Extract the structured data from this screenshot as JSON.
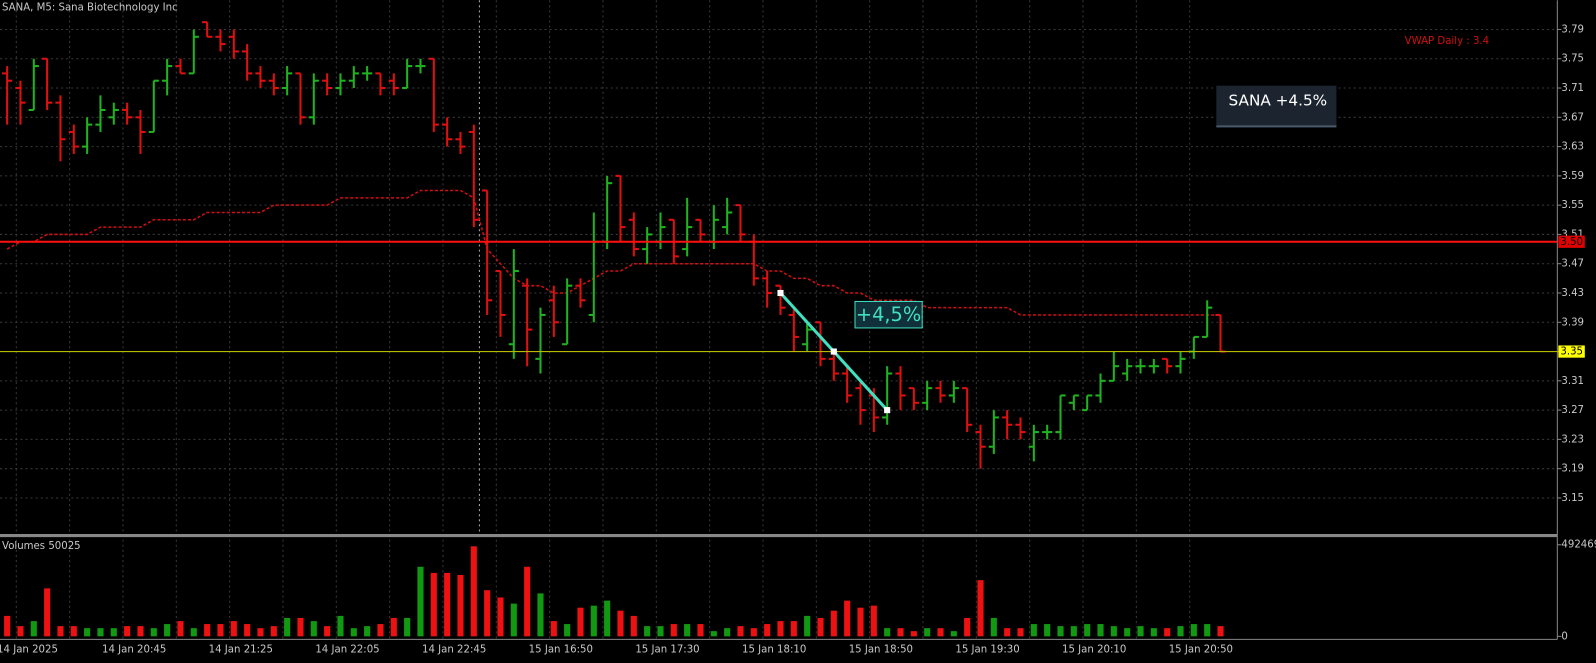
{
  "chart_data": {
    "type": "ohlc",
    "title": "SANA, M5:  Sana Biotechnology Inc",
    "categories": [
      "14 Jan 2025",
      null,
      null,
      null,
      null,
      null,
      null,
      null,
      "14 Jan 20:45",
      null,
      null,
      null,
      null,
      null,
      null,
      null,
      "14 Jan 21:25",
      null,
      null,
      null,
      null,
      null,
      null,
      null,
      "14 Jan 22:05",
      null,
      null,
      null,
      null,
      null,
      null,
      null,
      "14 Jan 22:45",
      null,
      null,
      null,
      null,
      null,
      null,
      null,
      "15 Jan 16:50",
      null,
      null,
      null,
      null,
      null,
      null,
      null,
      "15 Jan 17:30",
      null,
      null,
      null,
      null,
      null,
      null,
      null,
      "15 Jan 18:10",
      null,
      null,
      null,
      null,
      null,
      null,
      null,
      "15 Jan 18:50",
      null,
      null,
      null,
      null,
      null,
      null,
      null,
      "15 Jan 19:30",
      null,
      null,
      null,
      null,
      null,
      null,
      null,
      "15 Jan 20:10",
      null,
      null,
      null,
      null,
      null,
      null,
      null,
      "15 Jan 20:50",
      null,
      null,
      null
    ],
    "ohlc": [
      [
        3.73,
        3.74,
        3.66,
        3.72
      ],
      [
        3.71,
        3.72,
        3.66,
        3.69
      ],
      [
        3.68,
        3.75,
        3.68,
        3.74
      ],
      [
        3.75,
        3.75,
        3.68,
        3.69
      ],
      [
        3.69,
        3.7,
        3.61,
        3.64
      ],
      [
        3.65,
        3.66,
        3.62,
        3.63
      ],
      [
        3.63,
        3.67,
        3.62,
        3.66
      ],
      [
        3.66,
        3.7,
        3.65,
        3.68
      ],
      [
        3.67,
        3.69,
        3.66,
        3.68
      ],
      [
        3.68,
        3.69,
        3.66,
        3.67
      ],
      [
        3.67,
        3.68,
        3.62,
        3.65
      ],
      [
        3.65,
        3.72,
        3.65,
        3.72
      ],
      [
        3.72,
        3.75,
        3.7,
        3.74
      ],
      [
        3.74,
        3.75,
        3.73,
        3.73
      ],
      [
        3.73,
        3.79,
        3.73,
        3.78
      ],
      [
        3.8,
        3.8,
        3.78,
        3.78
      ],
      [
        3.78,
        3.79,
        3.76,
        3.77
      ],
      [
        3.78,
        3.79,
        3.75,
        3.76
      ],
      [
        3.76,
        3.77,
        3.72,
        3.73
      ],
      [
        3.73,
        3.74,
        3.71,
        3.72
      ],
      [
        3.72,
        3.73,
        3.7,
        3.71
      ],
      [
        3.71,
        3.74,
        3.7,
        3.73
      ],
      [
        3.73,
        3.73,
        3.66,
        3.67
      ],
      [
        3.67,
        3.73,
        3.66,
        3.72
      ],
      [
        3.72,
        3.73,
        3.7,
        3.71
      ],
      [
        3.71,
        3.73,
        3.7,
        3.72
      ],
      [
        3.72,
        3.74,
        3.71,
        3.73
      ],
      [
        3.73,
        3.74,
        3.72,
        3.73
      ],
      [
        3.73,
        3.73,
        3.7,
        3.71
      ],
      [
        3.72,
        3.73,
        3.7,
        3.71
      ],
      [
        3.71,
        3.75,
        3.71,
        3.74
      ],
      [
        3.74,
        3.75,
        3.73,
        3.74
      ],
      [
        3.75,
        3.75,
        3.65,
        3.66
      ],
      [
        3.66,
        3.67,
        3.63,
        3.64
      ],
      [
        3.64,
        3.65,
        3.62,
        3.63
      ],
      [
        3.65,
        3.66,
        3.52,
        3.53
      ],
      [
        3.57,
        3.57,
        3.4,
        3.42
      ],
      [
        3.46,
        3.46,
        3.37,
        3.4
      ],
      [
        3.36,
        3.49,
        3.34,
        3.46
      ],
      [
        3.44,
        3.45,
        3.33,
        3.38
      ],
      [
        3.34,
        3.41,
        3.32,
        3.4
      ],
      [
        3.42,
        3.44,
        3.37,
        3.39
      ],
      [
        3.36,
        3.45,
        3.36,
        3.44
      ],
      [
        3.44,
        3.45,
        3.41,
        3.42
      ],
      [
        3.4,
        3.54,
        3.39,
        3.5
      ],
      [
        3.5,
        3.59,
        3.49,
        3.58
      ],
      [
        3.59,
        3.59,
        3.5,
        3.52
      ],
      [
        3.53,
        3.54,
        3.48,
        3.49
      ],
      [
        3.49,
        3.52,
        3.47,
        3.51
      ],
      [
        3.5,
        3.54,
        3.49,
        3.52
      ],
      [
        3.53,
        3.53,
        3.47,
        3.48
      ],
      [
        3.49,
        3.56,
        3.48,
        3.52
      ],
      [
        3.53,
        3.53,
        3.5,
        3.51
      ],
      [
        3.5,
        3.55,
        3.49,
        3.53
      ],
      [
        3.52,
        3.56,
        3.51,
        3.54
      ],
      [
        3.55,
        3.55,
        3.5,
        3.51
      ],
      [
        3.5,
        3.51,
        3.44,
        3.45
      ],
      [
        3.45,
        3.46,
        3.41,
        3.43
      ],
      [
        3.44,
        3.44,
        3.4,
        3.41
      ],
      [
        3.4,
        3.41,
        3.35,
        3.37
      ],
      [
        3.36,
        3.39,
        3.35,
        3.38
      ],
      [
        3.39,
        3.39,
        3.33,
        3.34
      ],
      [
        3.34,
        3.35,
        3.31,
        3.32
      ],
      [
        3.32,
        3.33,
        3.28,
        3.29
      ],
      [
        3.3,
        3.31,
        3.25,
        3.27
      ],
      [
        3.29,
        3.3,
        3.24,
        3.26
      ],
      [
        3.26,
        3.33,
        3.25,
        3.32
      ],
      [
        3.32,
        3.33,
        3.27,
        3.29
      ],
      [
        3.3,
        3.3,
        3.27,
        3.28
      ],
      [
        3.28,
        3.31,
        3.27,
        3.3
      ],
      [
        3.3,
        3.31,
        3.28,
        3.29
      ],
      [
        3.29,
        3.31,
        3.28,
        3.3
      ],
      [
        3.3,
        3.3,
        3.24,
        3.25
      ],
      [
        3.24,
        3.25,
        3.19,
        3.22
      ],
      [
        3.22,
        3.27,
        3.21,
        3.26
      ],
      [
        3.26,
        3.27,
        3.23,
        3.25
      ],
      [
        3.25,
        3.26,
        3.23,
        3.24
      ],
      [
        3.22,
        3.25,
        3.2,
        3.24
      ],
      [
        3.24,
        3.25,
        3.23,
        3.24
      ],
      [
        3.24,
        3.29,
        3.23,
        3.29
      ],
      [
        3.28,
        3.29,
        3.27,
        3.29
      ],
      [
        3.27,
        3.29,
        3.27,
        3.29
      ],
      [
        3.29,
        3.32,
        3.28,
        3.31
      ],
      [
        3.31,
        3.35,
        3.31,
        3.33
      ],
      [
        3.32,
        3.34,
        3.31,
        3.33
      ],
      [
        3.33,
        3.34,
        3.32,
        3.33
      ],
      [
        3.33,
        3.34,
        3.32,
        3.33
      ],
      [
        3.34,
        3.34,
        3.32,
        3.33
      ],
      [
        3.33,
        3.35,
        3.32,
        3.34
      ],
      [
        3.35,
        3.37,
        3.34,
        3.37
      ],
      [
        3.37,
        3.42,
        3.37,
        3.41
      ],
      [
        3.4,
        3.4,
        3.35,
        3.35
      ]
    ],
    "up_color": "#1fb41f",
    "down_color": "#e01010",
    "ylim": [
      3.1,
      3.83
    ],
    "yticks": [
      3.79,
      3.75,
      3.71,
      3.67,
      3.63,
      3.59,
      3.55,
      3.51,
      3.47,
      3.43,
      3.39,
      3.35,
      3.31,
      3.27,
      3.23,
      3.19,
      3.15
    ],
    "grid": true,
    "vwap": {
      "label": "VWAP Daily : 3.4",
      "color": "#d01010",
      "values": [
        3.49,
        3.5,
        3.5,
        3.51,
        3.51,
        3.51,
        3.51,
        3.52,
        3.52,
        3.52,
        3.52,
        3.53,
        3.53,
        3.53,
        3.53,
        3.54,
        3.54,
        3.54,
        3.54,
        3.54,
        3.55,
        3.55,
        3.55,
        3.55,
        3.55,
        3.56,
        3.56,
        3.56,
        3.56,
        3.56,
        3.56,
        3.57,
        3.57,
        3.57,
        3.57,
        3.56,
        3.49,
        3.47,
        3.45,
        3.44,
        3.44,
        3.43,
        3.43,
        3.44,
        3.45,
        3.46,
        3.46,
        3.47,
        3.47,
        3.47,
        3.47,
        3.47,
        3.47,
        3.47,
        3.47,
        3.47,
        3.47,
        3.46,
        3.46,
        3.45,
        3.45,
        3.44,
        3.44,
        3.43,
        3.43,
        3.42,
        3.42,
        3.42,
        3.42,
        3.41,
        3.41,
        3.41,
        3.41,
        3.41,
        3.41,
        3.41,
        3.4,
        3.4,
        3.4,
        3.4,
        3.4,
        3.4,
        3.4,
        3.4,
        3.4,
        3.4,
        3.4,
        3.4,
        3.4,
        3.4,
        3.4,
        3.4
      ]
    },
    "hlines": [
      {
        "value": 3.5,
        "label": "3.50",
        "color": "#ff1010"
      },
      {
        "value": 3.35,
        "label": "3.35",
        "color": "#b8b800"
      }
    ],
    "trendline": {
      "x": [
        58,
        66
      ],
      "y": [
        3.43,
        3.27
      ],
      "label": "+4,5%",
      "color": "#40e0c0"
    },
    "badge": "SANA +4.5%",
    "volume": {
      "label": "Volumes 50025",
      "ylim": [
        0,
        492469
      ],
      "yticks": [
        0,
        492469
      ],
      "values": [
        110000,
        55000,
        82000,
        258000,
        55000,
        55000,
        44000,
        44000,
        44000,
        55000,
        55000,
        44000,
        66000,
        82000,
        44000,
        66000,
        66000,
        82000,
        66000,
        44000,
        55000,
        99000,
        99000,
        82000,
        55000,
        110000,
        44000,
        55000,
        66000,
        99000,
        99000,
        374000,
        341000,
        341000,
        330000,
        484000,
        248000,
        209000,
        176000,
        374000,
        231000,
        82000,
        66000,
        154000,
        165000,
        192000,
        138000,
        110000,
        55000,
        55000,
        66000,
        66000,
        66000,
        28000,
        44000,
        55000,
        44000,
        66000,
        82000,
        82000,
        110000,
        99000,
        138000,
        192000,
        154000,
        165000,
        44000,
        44000,
        28000,
        44000,
        44000,
        28000,
        99000,
        302000,
        99000,
        44000,
        44000,
        66000,
        66000,
        55000,
        55000,
        66000,
        66000,
        55000,
        44000,
        55000,
        44000,
        44000,
        55000,
        66000,
        66000,
        55000
      ]
    }
  }
}
